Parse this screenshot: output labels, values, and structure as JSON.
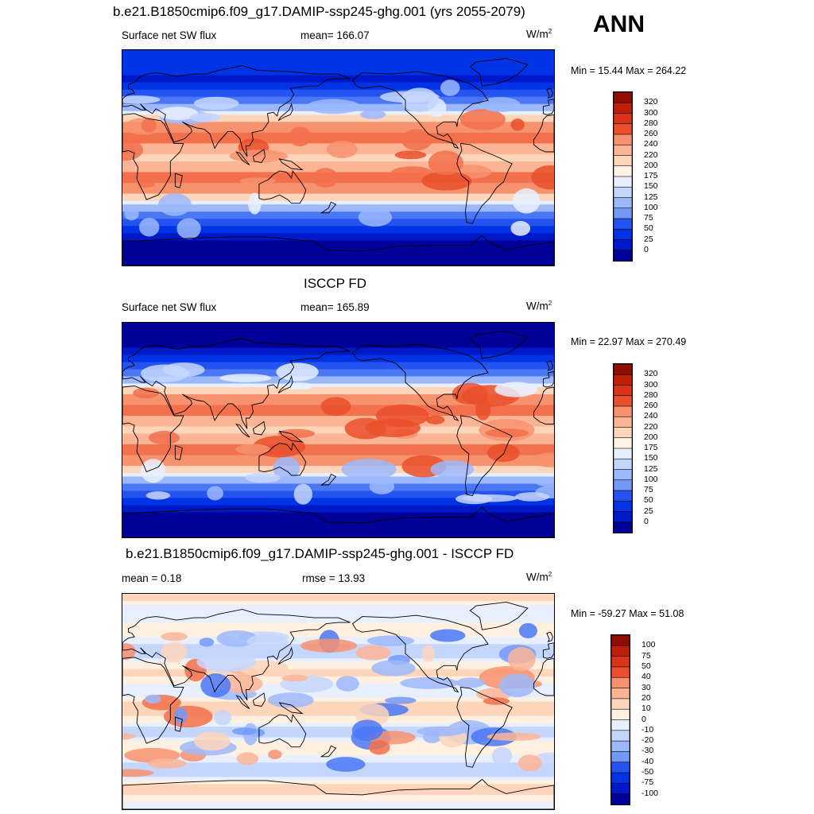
{
  "ann_label": "ANN",
  "colors": {
    "sw_scale": [
      "#000099",
      "#0019c8",
      "#0032e6",
      "#2553f0",
      "#4a78f5",
      "#7399f8",
      "#9cb8fb",
      "#c5d6fd",
      "#e8f0ff",
      "#fff4e6",
      "#fdd5bb",
      "#fbb595",
      "#f7926f",
      "#f2704c",
      "#ea4f2c",
      "#d93417",
      "#bf1f08",
      "#8e0e02"
    ],
    "diff_scale": [
      "#000099",
      "#0019c8",
      "#0032e6",
      "#2553f0",
      "#4a78f5",
      "#7399f8",
      "#9cb8fb",
      "#c5d6fd",
      "#e8f0ff",
      "#fff0e0",
      "#fdd5bb",
      "#fbb595",
      "#f7926f",
      "#f2704c",
      "#ea4f2c",
      "#d93417",
      "#bf1f08",
      "#8e0e02"
    ],
    "coast": "#000000"
  },
  "chart_data": [
    {
      "type": "heatmap",
      "title": "b.e21.B1850cmip6.f09_g17.DAMIP-ssp245-ghg.001 (yrs 2055-2079)",
      "left_label": "Surface net SW flux",
      "center_label": "mean= 166.07",
      "units": "W/m",
      "units_sup": "2",
      "minmax": "Min =  15.44 Max = 264.22",
      "colorbar_ticks": [
        "320",
        "300",
        "280",
        "260",
        "240",
        "220",
        "200",
        "175",
        "150",
        "125",
        "100",
        "75",
        "50",
        "25",
        "0"
      ],
      "field": "model"
    },
    {
      "type": "heatmap",
      "title": "ISCCP FD",
      "left_label": "Surface net SW flux",
      "center_label": "mean= 165.89",
      "units": "W/m",
      "units_sup": "2",
      "minmax": "Min =  22.97 Max = 270.49",
      "colorbar_ticks": [
        "320",
        "300",
        "280",
        "260",
        "240",
        "220",
        "200",
        "175",
        "150",
        "125",
        "100",
        "75",
        "50",
        "25",
        "0"
      ],
      "field": "obs"
    },
    {
      "type": "heatmap",
      "title": "b.e21.B1850cmip6.f09_g17.DAMIP-ssp245-ghg.001 - ISCCP FD",
      "left_label": "mean =   0.18",
      "center_label": "rmse =  13.93",
      "units": "W/m",
      "units_sup": "2",
      "minmax": "Min = -59.27 Max =  51.08",
      "colorbar_ticks": [
        "100",
        "75",
        "50",
        "40",
        "30",
        "20",
        "10",
        "0",
        "-10",
        "-20",
        "-30",
        "-40",
        "-50",
        "-75",
        "-100"
      ],
      "field": "diff"
    }
  ]
}
